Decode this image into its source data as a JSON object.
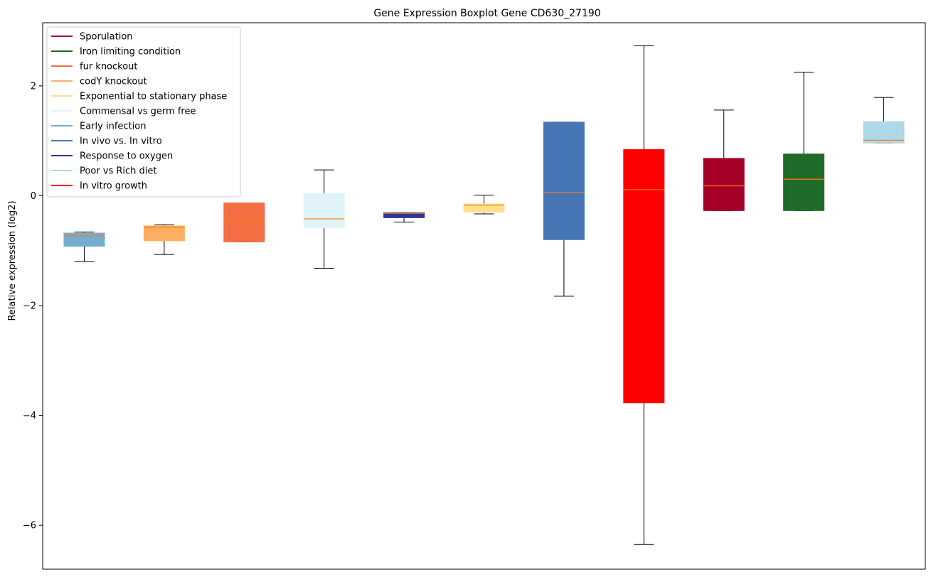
{
  "chart_data": {
    "type": "boxplot",
    "title": "Gene Expression Boxplot Gene CD630_27190",
    "xlabel": "",
    "ylabel": "Relative expression (log2)",
    "ylim": [
      -6.8,
      3.15
    ],
    "yticks": [
      2,
      0,
      -2,
      -4,
      -6
    ],
    "ytick_labels": [
      "2",
      "0",
      "−2",
      "−4",
      "−6"
    ],
    "legend_position": "top-left",
    "legend": [
      {
        "label": "Sporulation",
        "color": "#a50026"
      },
      {
        "label": "Iron limiting condition",
        "color": "#1f6b2a"
      },
      {
        "label": "fur knockout",
        "color": "#f46d43"
      },
      {
        "label": "codY knockout",
        "color": "#fdae61"
      },
      {
        "label": "Exponential to stationary phase",
        "color": "#fee090"
      },
      {
        "label": "Commensal vs germ free",
        "color": "#e0f3f8"
      },
      {
        "label": "Early infection",
        "color": "#74add1"
      },
      {
        "label": "In vivo vs. In vitro",
        "color": "#4575b4"
      },
      {
        "label": "Response to oxygen",
        "color": "#313695"
      },
      {
        "label": "Poor vs Rich diet",
        "color": "#abd9e9"
      },
      {
        "label": "In vitro growth",
        "color": "#ff0000"
      }
    ],
    "median_color": "#ff7f0e",
    "boxes": [
      {
        "color": "#74add1",
        "whislo": -1.2,
        "q1": -0.92,
        "med": -0.73,
        "q3": -0.68,
        "whishi": -0.66
      },
      {
        "color": "#fdae61",
        "whislo": -1.07,
        "q1": -0.82,
        "med": -0.57,
        "q3": -0.55,
        "whishi": -0.53
      },
      {
        "color": "#f46d43",
        "whislo": -0.84,
        "q1": -0.84,
        "med": -0.47,
        "q3": -0.13,
        "whishi": -0.13
      },
      {
        "color": "#e0f3f8",
        "whislo": -1.32,
        "q1": -0.58,
        "med": -0.42,
        "q3": 0.04,
        "whishi": 0.47
      },
      {
        "color": "#313695",
        "whislo": -0.48,
        "q1": -0.4,
        "med": -0.32,
        "q3": -0.31,
        "whishi": -0.31
      },
      {
        "color": "#fee090",
        "whislo": -0.33,
        "q1": -0.3,
        "med": -0.17,
        "q3": -0.15,
        "whishi": 0.01
      },
      {
        "color": "#4575b4",
        "whislo": -1.83,
        "q1": -0.8,
        "med": 0.06,
        "q3": 1.34,
        "whishi": 1.34
      },
      {
        "color": "#ff0000",
        "whislo": -6.35,
        "q1": -3.77,
        "med": 0.11,
        "q3": 0.84,
        "whishi": 2.73
      },
      {
        "color": "#a50026",
        "whislo": -0.27,
        "q1": -0.27,
        "med": 0.18,
        "q3": 0.68,
        "whishi": 1.56
      },
      {
        "color": "#1f6b2a",
        "whislo": -0.27,
        "q1": -0.27,
        "med": 0.3,
        "q3": 0.76,
        "whishi": 2.25
      },
      {
        "color": "#add8e6",
        "whislo": 0.96,
        "q1": 0.96,
        "med": 1.01,
        "q3": 1.35,
        "whishi": 1.79
      }
    ]
  }
}
